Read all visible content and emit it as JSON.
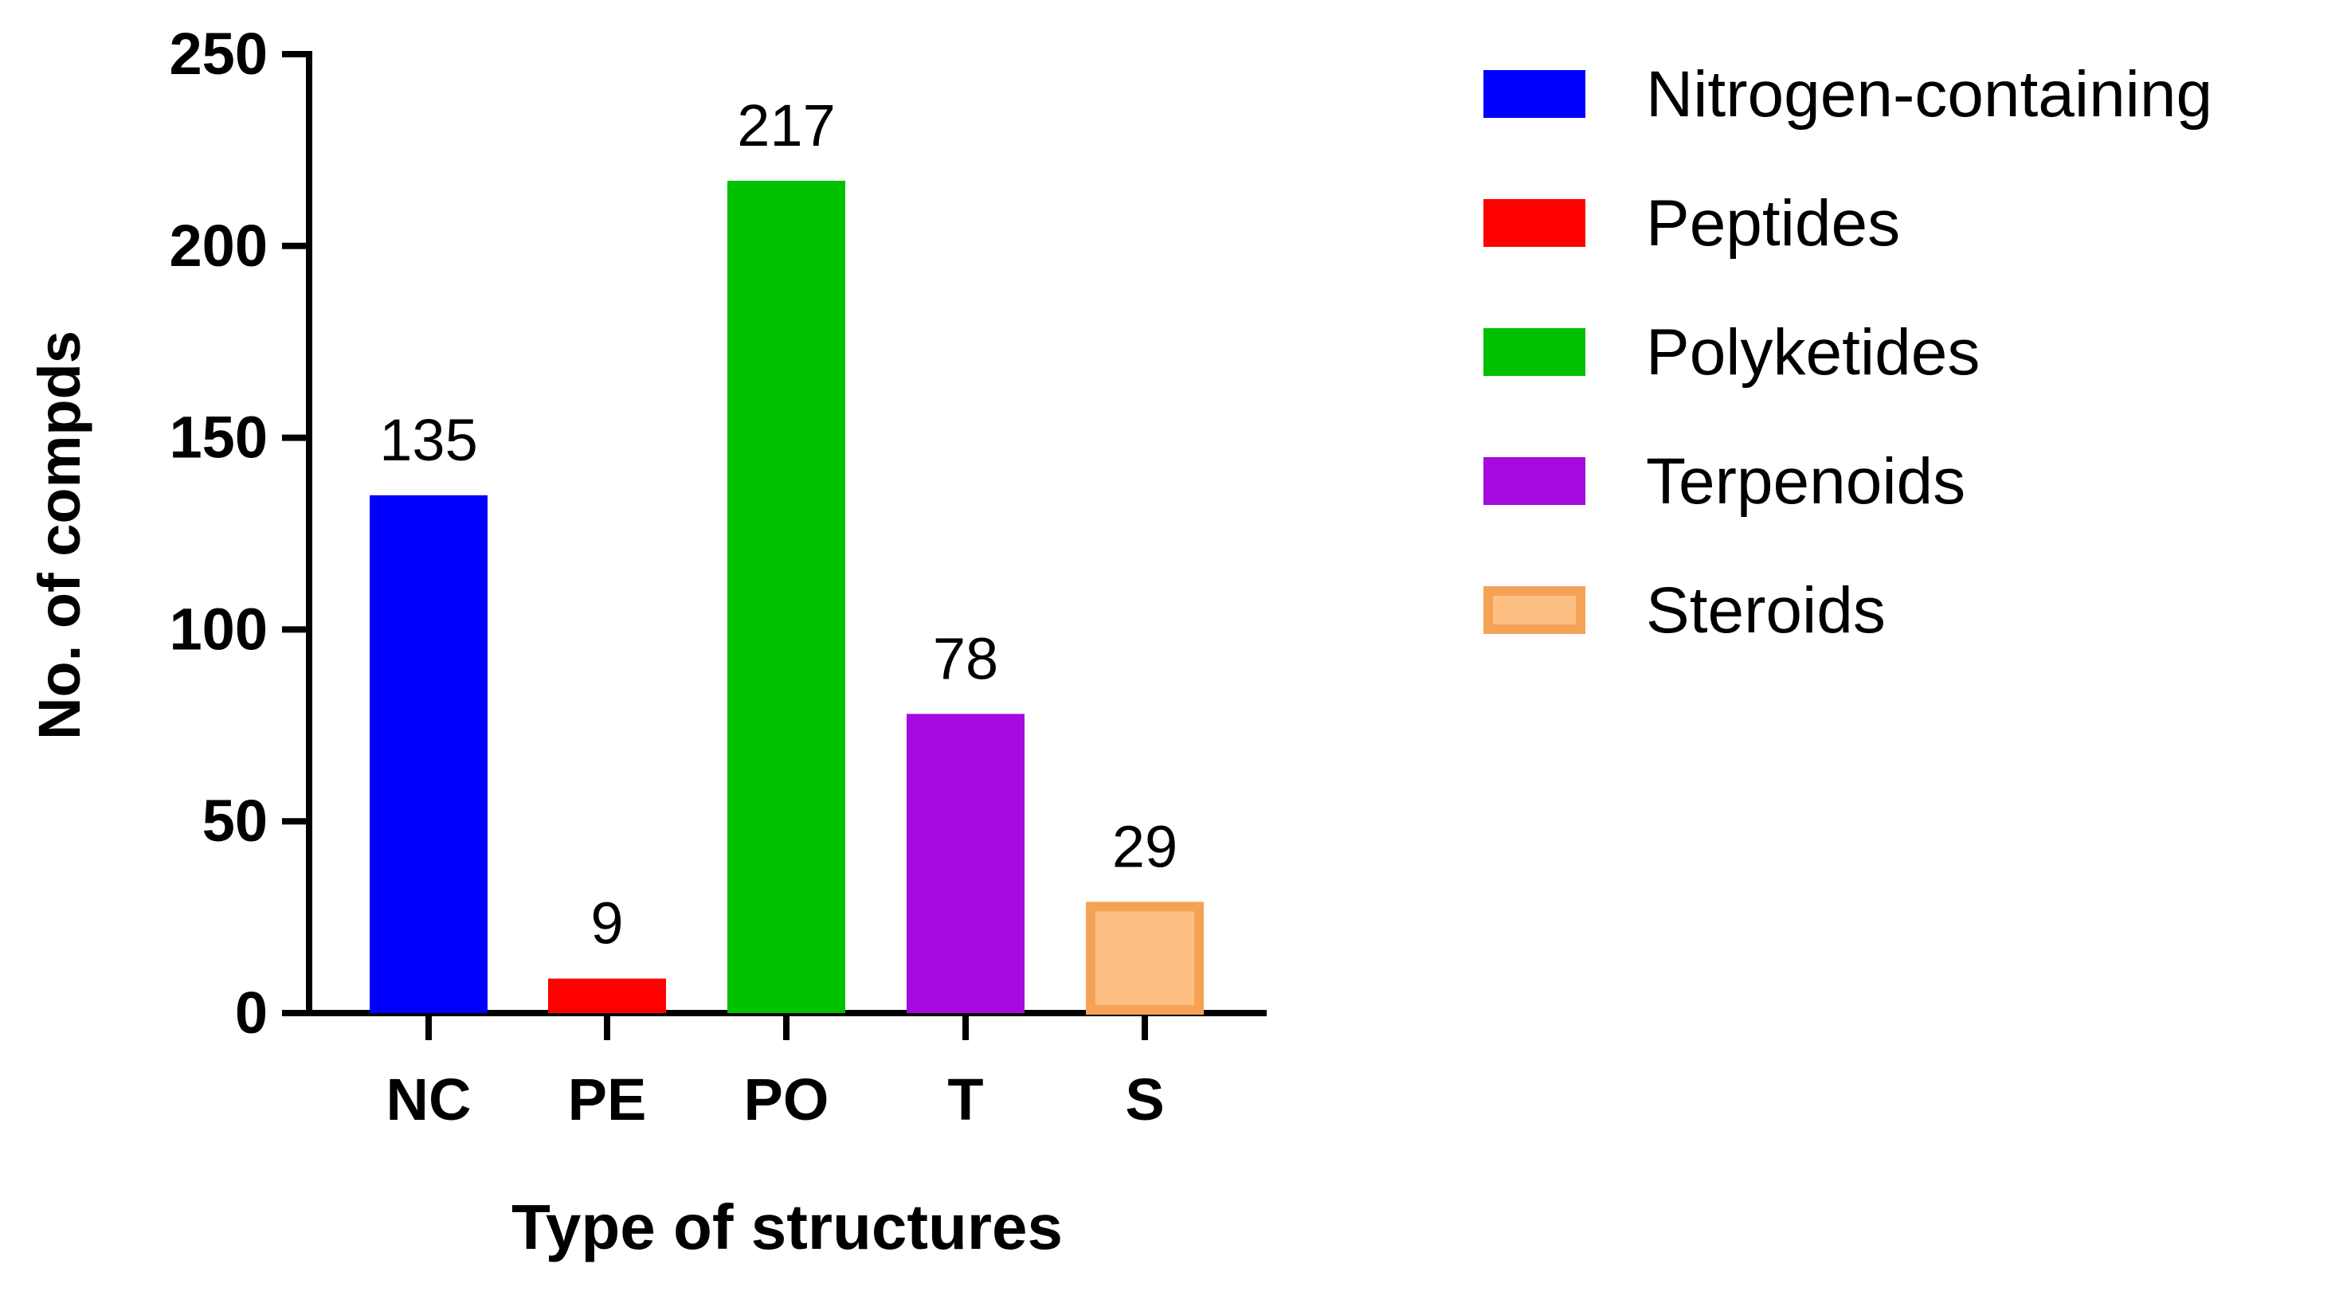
{
  "chart_data": {
    "type": "bar",
    "title": "",
    "xlabel": "Type of structures",
    "ylabel": "No. of compds",
    "categories": [
      "NC",
      "PE",
      "PO",
      "T",
      "S"
    ],
    "values": [
      135,
      9,
      217,
      78,
      29
    ],
    "value_labels": [
      "135",
      "9",
      "217",
      "78",
      "29"
    ],
    "ylim": [
      0,
      250
    ],
    "yticks": [
      0,
      50,
      100,
      150,
      200,
      250
    ],
    "ytick_labels": [
      "0",
      "50",
      "100",
      "150",
      "200",
      "250"
    ],
    "grid": false,
    "legend_position": "right",
    "legend": [
      {
        "label": "Nitrogen-containing",
        "color": "#0000ff"
      },
      {
        "label": "Peptides",
        "color": "#ff0000"
      },
      {
        "label": "Polyketides",
        "color": "#00c000"
      },
      {
        "label": "Terpenoids",
        "color": "#a60ae0"
      },
      {
        "label": "Steroids",
        "color": "#fdbf82"
      }
    ],
    "bar_colors": [
      "#0000ff",
      "#ff0000",
      "#00c000",
      "#a60ae0",
      "#fdbf82"
    ],
    "steroids_border_color": "#f5a257"
  }
}
